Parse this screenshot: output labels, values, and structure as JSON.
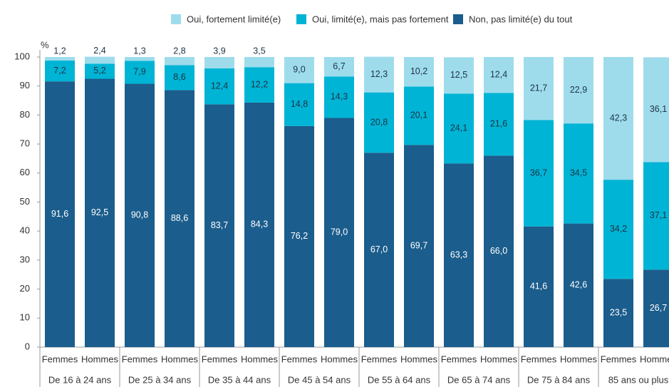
{
  "chart_data": {
    "type": "stacked_bar",
    "y_label": "%",
    "categories": [
      "Femmes",
      "Hommes",
      "Femmes",
      "Hommes",
      "Femmes",
      "Hommes",
      "Femmes",
      "Hommes",
      "Femmes",
      "Hommes",
      "Femmes",
      "Hommes",
      "Femmes",
      "Hommes",
      "Femmes",
      "Hommes"
    ],
    "groups": [
      "De 16 à 24 ans",
      "De 25 à 34 ans",
      "De 35 à 44 ans",
      "De 45 à 54 ans",
      "De 55 à 64 ans",
      "De 65 à 74 ans",
      "De 75 à 84 ans",
      "85 ans ou plus"
    ],
    "series": [
      {
        "name": "Non, pas limité(e) du tout",
        "color": "#1b5d8c",
        "values": [
          91.6,
          92.5,
          90.8,
          88.6,
          83.7,
          84.3,
          76.2,
          79.0,
          67.0,
          69.7,
          63.3,
          66.0,
          41.6,
          42.6,
          23.5,
          26.7
        ],
        "value_labels": [
          "91,6",
          "92,5",
          "90,8",
          "88,6",
          "83,7",
          "84,3",
          "76,2",
          "79,0",
          "67,0",
          "69,7",
          "63,3",
          "66,0",
          "41,6",
          "42,6",
          "23,5",
          "26,7"
        ]
      },
      {
        "name": "Oui, limité(e), mais pas fortement",
        "color": "#00b4d5",
        "values": [
          7.2,
          5.2,
          7.9,
          8.6,
          12.4,
          12.2,
          14.8,
          14.3,
          20.8,
          20.1,
          24.1,
          21.6,
          36.7,
          34.5,
          34.2,
          37.1
        ],
        "value_labels": [
          "7,2",
          "5,2",
          "7,9",
          "8,6",
          "12,4",
          "12,2",
          "14,8",
          "14,3",
          "20,8",
          "20,1",
          "24,1",
          "21,6",
          "36,7",
          "34,5",
          "34,2",
          "37,1"
        ]
      },
      {
        "name": "Oui, fortement limité(e)",
        "color": "#9edcec",
        "values": [
          1.2,
          2.4,
          1.3,
          2.8,
          3.9,
          3.5,
          9.0,
          6.7,
          12.3,
          10.2,
          12.5,
          12.4,
          21.7,
          22.9,
          42.3,
          36.1
        ],
        "value_labels": [
          "1,2",
          "2,4",
          "1,3",
          "2,8",
          "3,9",
          "3,5",
          "9,0",
          "6,7",
          "12,3",
          "10,2",
          "12,5",
          "12,4",
          "21,7",
          "22,9",
          "42,3",
          "36,1"
        ]
      }
    ],
    "legend_order": [
      2,
      1,
      0
    ],
    "ylim": [
      0,
      100
    ],
    "yticks": [
      0,
      10,
      20,
      30,
      40,
      50,
      60,
      70,
      80,
      90,
      100
    ]
  }
}
